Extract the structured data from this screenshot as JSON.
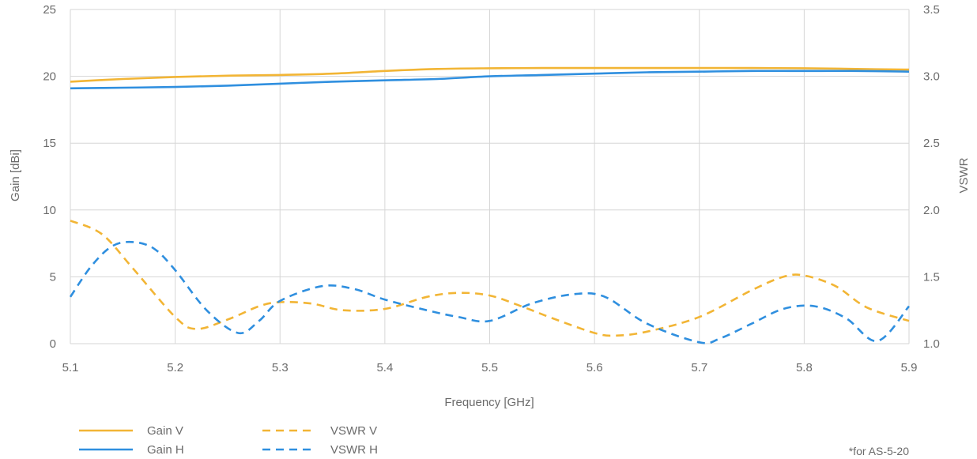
{
  "chart_data": {
    "type": "line",
    "xlabel": "Frequency [GHz]",
    "ylabel": "Gain [dBi]",
    "y2label": "VSWR",
    "xlim": [
      5.1,
      5.9
    ],
    "ylim": [
      0,
      25
    ],
    "y2lim": [
      1.0,
      3.5
    ],
    "xticks": [
      "5.1",
      "5.2",
      "5.3",
      "5.4",
      "5.5",
      "5.6",
      "5.7",
      "5.8",
      "5.9"
    ],
    "yticks": [
      "0",
      "5",
      "10",
      "15",
      "20",
      "25"
    ],
    "y2ticks": [
      "1.0",
      "1.5",
      "2.0",
      "2.5",
      "3.0",
      "3.5"
    ],
    "grid": true,
    "legend_position": "bottom-left",
    "colors": {
      "gain_v": "#f2b535",
      "gain_h": "#2f8fdf",
      "grid": "#d6d6d6",
      "text": "#6b6b6b"
    },
    "series": [
      {
        "name": "Gain V",
        "axis": "left",
        "style": "solid",
        "x": [
          5.1,
          5.15,
          5.2,
          5.25,
          5.3,
          5.35,
          5.4,
          5.45,
          5.5,
          5.55,
          5.6,
          5.65,
          5.7,
          5.75,
          5.8,
          5.85,
          5.9
        ],
        "values": [
          19.6,
          19.8,
          19.95,
          20.05,
          20.1,
          20.2,
          20.4,
          20.55,
          20.6,
          20.62,
          20.62,
          20.62,
          20.62,
          20.62,
          20.6,
          20.55,
          20.5
        ]
      },
      {
        "name": "Gain H",
        "axis": "left",
        "style": "solid",
        "x": [
          5.1,
          5.15,
          5.2,
          5.25,
          5.3,
          5.35,
          5.4,
          5.45,
          5.5,
          5.55,
          5.6,
          5.65,
          5.7,
          5.75,
          5.8,
          5.85,
          5.9
        ],
        "values": [
          19.1,
          19.15,
          19.2,
          19.3,
          19.45,
          19.6,
          19.7,
          19.8,
          20.0,
          20.1,
          20.2,
          20.3,
          20.35,
          20.4,
          20.4,
          20.4,
          20.35
        ]
      },
      {
        "name": "VSWR V",
        "axis": "right",
        "style": "dashed",
        "x": [
          5.1,
          5.13,
          5.16,
          5.2,
          5.22,
          5.25,
          5.28,
          5.3,
          5.33,
          5.36,
          5.4,
          5.44,
          5.47,
          5.5,
          5.53,
          5.56,
          5.6,
          5.62,
          5.65,
          5.7,
          5.75,
          5.78,
          5.8,
          5.83,
          5.86,
          5.9
        ],
        "values": [
          1.92,
          1.82,
          1.56,
          1.2,
          1.11,
          1.18,
          1.28,
          1.31,
          1.3,
          1.25,
          1.26,
          1.35,
          1.38,
          1.36,
          1.28,
          1.19,
          1.08,
          1.06,
          1.09,
          1.2,
          1.4,
          1.5,
          1.51,
          1.43,
          1.27,
          1.17
        ]
      },
      {
        "name": "VSWR H",
        "axis": "right",
        "style": "dashed",
        "x": [
          5.1,
          5.12,
          5.14,
          5.16,
          5.18,
          5.2,
          5.23,
          5.26,
          5.28,
          5.3,
          5.34,
          5.37,
          5.4,
          5.44,
          5.47,
          5.5,
          5.54,
          5.58,
          5.61,
          5.65,
          5.7,
          5.72,
          5.75,
          5.78,
          5.81,
          5.84,
          5.87,
          5.9
        ],
        "values": [
          1.35,
          1.58,
          1.73,
          1.76,
          1.71,
          1.55,
          1.25,
          1.08,
          1.17,
          1.32,
          1.43,
          1.41,
          1.33,
          1.25,
          1.2,
          1.17,
          1.3,
          1.37,
          1.35,
          1.15,
          1.01,
          1.04,
          1.15,
          1.26,
          1.28,
          1.19,
          1.02,
          1.28
        ]
      }
    ]
  },
  "footnote": "*for AS-5-20"
}
